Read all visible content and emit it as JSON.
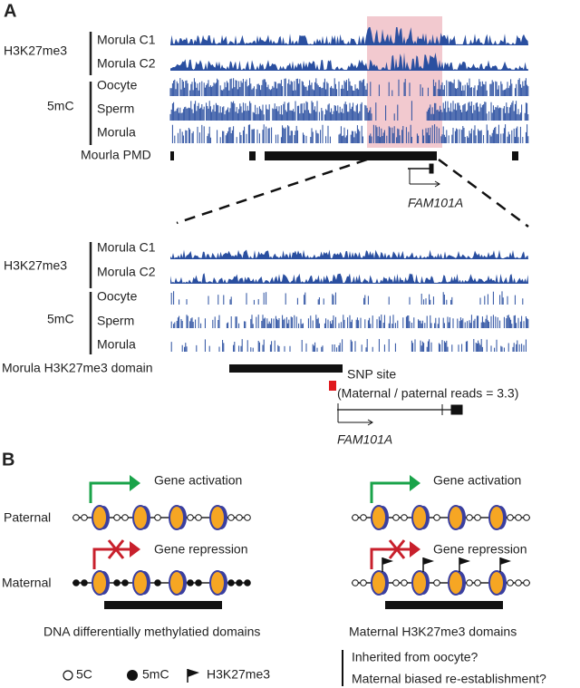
{
  "panel_a": {
    "label": "A",
    "top": {
      "groups": [
        {
          "label": "H3K27me3",
          "tracks": [
            "Morula C1",
            "Morula C2"
          ]
        },
        {
          "label": "5mC",
          "tracks": [
            "Oocyte",
            "Sperm",
            "Morula"
          ]
        }
      ],
      "pmd_label": "Mourla PMD",
      "gene": "FAM101A"
    },
    "bottom": {
      "groups": [
        {
          "label": "H3K27me3",
          "tracks": [
            "Morula C1",
            "Morula C2"
          ]
        },
        {
          "label": "5mC",
          "tracks": [
            "Oocyte",
            "Sperm",
            "Morula"
          ]
        }
      ],
      "domain_label": "Morula H3K27me3 domain",
      "snp_label": "SNP site",
      "snp_note": "(Maternal / paternal reads = 3.3)",
      "gene": "FAM101A"
    }
  },
  "panel_b": {
    "label": "B",
    "rows": [
      "Paternal",
      "Maternal"
    ],
    "left": {
      "activation": "Gene activation",
      "repression": "Gene repression",
      "caption": "DNA differentially methylatied domains"
    },
    "right": {
      "activation": "Gene activation",
      "repression": "Gene repression",
      "caption": "Maternal H3K27me3 domains",
      "notes": [
        "Inherited from oocyte?",
        "Maternal biased re-establishment?"
      ]
    },
    "legend": [
      "5C",
      "5mC",
      "H3K27me3"
    ]
  }
}
